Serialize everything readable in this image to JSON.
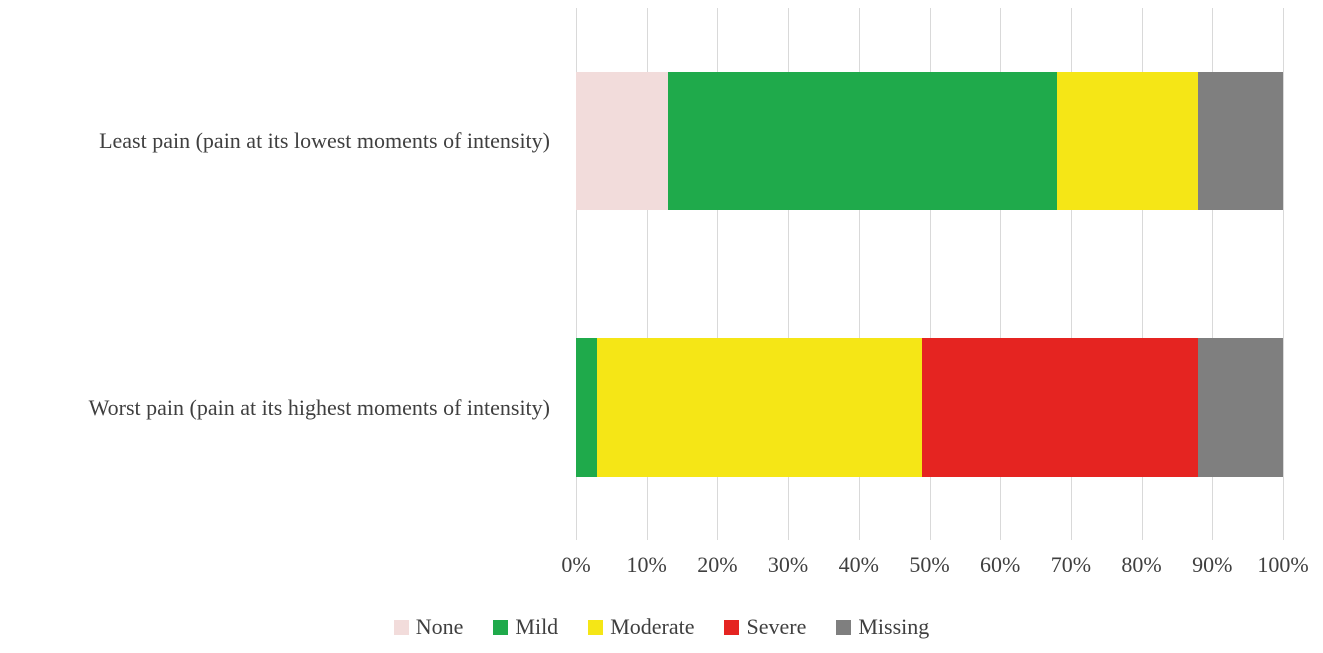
{
  "chart_data": {
    "type": "bar",
    "stacked": true,
    "orientation": "horizontal",
    "unit": "percent",
    "title": "",
    "xlabel": "",
    "ylabel": "",
    "grid": true,
    "categories": [
      "Least pain (pain at its lowest moments of intensity)",
      "Worst pain (pain at its highest moments of intensity)"
    ],
    "series": [
      {
        "name": "None",
        "color": "#f2dcdb",
        "values": [
          13,
          0
        ]
      },
      {
        "name": "Mild",
        "color": "#1faa4b",
        "values": [
          55,
          3
        ]
      },
      {
        "name": "Moderate",
        "color": "#f5e616",
        "values": [
          20,
          46
        ]
      },
      {
        "name": "Severe",
        "color": "#e52421",
        "values": [
          0,
          39
        ]
      },
      {
        "name": "Missing",
        "color": "#7f7f7f",
        "values": [
          12,
          12
        ]
      }
    ],
    "x_axis": {
      "min": 0,
      "max": 100,
      "ticks": [
        "0%",
        "10%",
        "20%",
        "30%",
        "40%",
        "50%",
        "60%",
        "70%",
        "80%",
        "90%",
        "100%"
      ]
    },
    "legend": {
      "position": "bottom",
      "entries": [
        "None",
        "Mild",
        "Moderate",
        "Severe",
        "Missing"
      ]
    },
    "colors": {
      "gridline": "#d9d9d9",
      "text": "#3f3f3f"
    }
  }
}
